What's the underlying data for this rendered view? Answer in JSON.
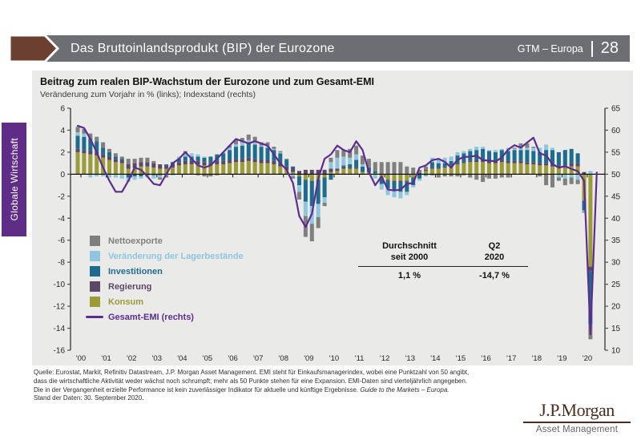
{
  "header": {
    "title": "Das Bruttoinlandsprodukt (BIP) der Eurozone",
    "right_label": "GTM – Europa",
    "page_number": "28",
    "bar_color": "#6d6e71",
    "arrow_color": "#6b4031"
  },
  "sidebar": {
    "label": "Globale Wirtschaft",
    "color": "#5f2d87"
  },
  "chart": {
    "title": "Beitrag zum realen BIP-Wachstum der Eurozone und zum Gesamt-EMI",
    "subtitle": "Veränderung zum Vorjahr in % (links); Indexstand (rechts)",
    "legend": [
      {
        "label": "Nettoexporte",
        "color": "#7f7f7f",
        "shape": "square"
      },
      {
        "label": "Veränderung der Lagerbestände",
        "color": "#8ec6e0",
        "shape": "square"
      },
      {
        "label": "Investitionen",
        "color": "#1e6c8d",
        "shape": "square"
      },
      {
        "label": "Regierung",
        "color": "#5c4767",
        "shape": "square"
      },
      {
        "label": "Konsum",
        "color": "#9b9b38",
        "shape": "square"
      },
      {
        "label": "Gesamt-EMI (rechts)",
        "color": "#5c2d8f",
        "shape": "line"
      }
    ],
    "stats": {
      "col1_header": "Durchschnitt\nseit 2000",
      "col2_header": "Q2\n2020",
      "col1_value": "1,1 %",
      "col2_value": "-14,7 %"
    }
  },
  "chart_data": {
    "type": "bar",
    "subtype": "stacked-bars-with-line",
    "title": "Beitrag zum realen BIP-Wachstum der Eurozone und zum Gesamt-EMI",
    "xlabel": "",
    "ylabel_left": "Veränderung zum Vorjahr in %",
    "ylabel_right": "Indexstand",
    "frequency": "quarterly",
    "first_quarter": "2000Q1",
    "last_bar_quarter": "2020Q2",
    "last_line_quarter": "2020Q3",
    "x_tick_labels": [
      "'00",
      "'01",
      "'02",
      "'03",
      "'04",
      "'05",
      "'06",
      "'07",
      "'08",
      "'09",
      "'10",
      "'11",
      "'12",
      "'13",
      "'14",
      "'15",
      "'16",
      "'17",
      "'18",
      "'19",
      "'20"
    ],
    "left_axis": {
      "min": -16,
      "max": 6,
      "step": 2
    },
    "right_axis": {
      "min": 10,
      "max": 65,
      "step": 5
    },
    "grid": false,
    "legend_position": "inside-left",
    "series": [
      {
        "name": "Konsum",
        "color": "#9b9b38",
        "values": [
          2.0,
          1.9,
          1.8,
          1.7,
          1.5,
          1.3,
          1.1,
          1.0,
          0.5,
          0.6,
          0.7,
          0.7,
          0.6,
          0.5,
          0.5,
          0.6,
          0.8,
          0.9,
          0.9,
          0.9,
          0.8,
          0.8,
          0.9,
          0.9,
          1.0,
          1.1,
          1.1,
          1.2,
          1.1,
          1.0,
          1.0,
          0.9,
          0.7,
          0.4,
          0.2,
          -0.2,
          -0.5,
          -0.6,
          -0.5,
          -0.3,
          0.2,
          0.3,
          0.5,
          0.5,
          0.5,
          0.2,
          0.2,
          0.1,
          -0.3,
          -0.5,
          -0.6,
          -0.6,
          -0.6,
          -0.3,
          0.0,
          0.3,
          0.5,
          0.5,
          0.6,
          0.7,
          0.9,
          1.0,
          1.1,
          1.1,
          1.1,
          1.0,
          1.0,
          1.1,
          1.0,
          1.0,
          1.0,
          0.9,
          0.9,
          0.8,
          0.8,
          0.7,
          0.6,
          0.6,
          0.7,
          0.7,
          -2.4,
          -8.4
        ]
      },
      {
        "name": "Regierung",
        "color": "#5c4767",
        "values": [
          0.3,
          0.3,
          0.3,
          0.3,
          0.3,
          0.3,
          0.3,
          0.3,
          0.4,
          0.4,
          0.4,
          0.4,
          0.4,
          0.4,
          0.3,
          0.3,
          0.3,
          0.3,
          0.3,
          0.3,
          0.3,
          0.3,
          0.3,
          0.3,
          0.3,
          0.3,
          0.3,
          0.3,
          0.3,
          0.3,
          0.3,
          0.3,
          0.3,
          0.3,
          0.3,
          0.3,
          0.4,
          0.4,
          0.4,
          0.4,
          0.3,
          0.2,
          0.2,
          0.1,
          0.1,
          0.0,
          0.0,
          0.0,
          -0.1,
          -0.1,
          -0.1,
          -0.1,
          -0.1,
          0.0,
          0.1,
          0.1,
          0.1,
          0.1,
          0.1,
          0.1,
          0.1,
          0.1,
          0.1,
          0.2,
          0.2,
          0.2,
          0.2,
          0.2,
          0.2,
          0.2,
          0.2,
          0.2,
          0.2,
          0.2,
          0.2,
          0.2,
          0.2,
          0.2,
          0.3,
          0.3,
          0.2,
          -0.4
        ]
      },
      {
        "name": "Investitionen",
        "color": "#1e6c8d",
        "values": [
          1.2,
          1.2,
          1.1,
          1.0,
          0.6,
          0.4,
          0.2,
          0.1,
          -0.3,
          -0.2,
          -0.2,
          -0.1,
          -0.1,
          -0.1,
          0.1,
          0.2,
          0.3,
          0.4,
          0.4,
          0.4,
          0.4,
          0.5,
          0.6,
          0.7,
          0.9,
          1.1,
          1.2,
          1.3,
          1.3,
          1.2,
          1.1,
          1.0,
          0.9,
          0.6,
          0.2,
          -0.8,
          -2.0,
          -2.3,
          -2.2,
          -1.8,
          -0.5,
          0.0,
          0.1,
          0.3,
          0.7,
          0.5,
          0.4,
          0.2,
          -0.5,
          -0.7,
          -0.8,
          -0.9,
          -0.9,
          -0.7,
          -0.4,
          -0.1,
          0.5,
          0.4,
          0.3,
          0.4,
          0.7,
          0.8,
          0.9,
          0.9,
          1.0,
          0.9,
          0.8,
          0.9,
          0.9,
          1.0,
          1.0,
          1.1,
          1.0,
          1.0,
          1.2,
          1.3,
          1.2,
          1.4,
          1.3,
          0.9,
          -0.9,
          -4.8
        ]
      },
      {
        "name": "Veränderung der Lagerbestände",
        "color": "#8ec6e0",
        "values": [
          0.3,
          0.3,
          -0.3,
          -0.2,
          -0.2,
          -0.3,
          -0.3,
          -0.4,
          -0.4,
          -0.3,
          -0.2,
          -0.2,
          -0.3,
          -0.2,
          -0.1,
          -0.1,
          0.2,
          0.3,
          0.3,
          0.2,
          0.1,
          0.0,
          0.0,
          0.1,
          0.2,
          0.2,
          0.3,
          0.3,
          0.2,
          0.1,
          0.2,
          0.1,
          0.1,
          0.0,
          -0.2,
          -0.6,
          -1.3,
          -1.6,
          -1.2,
          -0.5,
          0.6,
          1.0,
          0.8,
          0.6,
          0.5,
          0.2,
          0.0,
          -0.4,
          -0.5,
          -0.6,
          -0.6,
          -0.6,
          -0.3,
          -0.2,
          -0.2,
          -0.1,
          0.4,
          0.4,
          0.5,
          0.4,
          0.3,
          0.2,
          0.2,
          0.3,
          0.2,
          0.1,
          0.2,
          0.1,
          0.3,
          0.1,
          0.3,
          0.2,
          0.3,
          0.4,
          0.5,
          0.2,
          -0.3,
          -0.4,
          -0.3,
          -0.5,
          -0.1,
          0.3
        ]
      },
      {
        "name": "Nettoexporte",
        "color": "#7f7f7f",
        "values": [
          0.5,
          0.4,
          0.5,
          0.4,
          0.5,
          0.3,
          0.3,
          0.2,
          0.5,
          0.4,
          0.4,
          0.4,
          0.2,
          -0.2,
          -0.2,
          0.0,
          0.0,
          0.2,
          0.0,
          -0.1,
          -0.2,
          -0.2,
          -0.1,
          0.0,
          0.2,
          0.4,
          0.4,
          0.5,
          0.5,
          0.3,
          0.3,
          0.2,
          0.1,
          0.1,
          -0.2,
          -0.7,
          -1.9,
          -1.6,
          -1.0,
          -0.3,
          0.4,
          0.7,
          0.6,
          0.8,
          0.8,
          0.8,
          0.8,
          0.8,
          1.1,
          1.1,
          1.1,
          1.1,
          0.7,
          0.6,
          0.3,
          0.3,
          -0.1,
          -0.3,
          -0.2,
          -0.2,
          -0.2,
          -0.1,
          -0.3,
          -0.5,
          -0.7,
          -0.4,
          -0.4,
          -0.3,
          -0.3,
          0.1,
          0.3,
          0.4,
          0.1,
          -0.2,
          -1.0,
          -1.2,
          -0.3,
          -0.6,
          -0.6,
          -0.4,
          -0.1,
          -1.4
        ]
      }
    ],
    "line_series": {
      "name": "Gesamt-EMI (rechts)",
      "axis": "right",
      "color": "#5c2d8f",
      "values": [
        61.0,
        60.5,
        58.0,
        55.0,
        51.5,
        48.5,
        46.0,
        46.0,
        48.5,
        51.5,
        51.0,
        49.5,
        47.8,
        47.5,
        50.0,
        52.5,
        53.5,
        55.0,
        53.5,
        52.0,
        51.5,
        52.0,
        53.5,
        55.0,
        56.5,
        58.0,
        57.5,
        57.0,
        57.5,
        57.0,
        56.5,
        54.5,
        52.5,
        51.0,
        48.0,
        40.5,
        38.0,
        41.0,
        49.0,
        53.5,
        54.5,
        56.5,
        55.5,
        55.0,
        57.5,
        55.5,
        50.5,
        47.5,
        49.5,
        46.5,
        46.3,
        46.5,
        47.8,
        48.0,
        51.5,
        52.0,
        53.2,
        53.5,
        52.8,
        51.5,
        53.3,
        53.9,
        54.0,
        54.2,
        53.2,
        53.1,
        52.9,
        53.8,
        55.6,
        56.6,
        56.0,
        57.2,
        58.3,
        54.7,
        54.3,
        52.3,
        51.5,
        51.8,
        51.2,
        50.7,
        48.5,
        13.6,
        50.4
      ]
    },
    "annotations": {
      "average_since_2000": "1,1 %",
      "q2_2020": "-14,7 %"
    }
  },
  "footer": {
    "line1": "Quelle: Eurostat, Markit, Refinitiv Datastream, J.P. Morgan Asset Management. EMI steht für Einkaufsmanagerindex, wobei eine Punktzahl von 50 angibt,",
    "line2": "dass die wirtschaftliche Aktivität weder wächst noch schrumpft; mehr als 50 Punkte stehen für eine Expansion. EMI-Daten sind vierteljährlich angegeben.",
    "line3_regular": "Die in der Vergangenheit erzielte Performance ist kein zuverlässiger Indikator für aktuelle und künftige Ergebnisse. ",
    "line3_italic": "Guide to the Markets – Europa.",
    "line4": "Stand der Daten: 30. September 2020."
  },
  "logo": {
    "main": "J.P.Morgan",
    "sub": "Asset Management"
  }
}
